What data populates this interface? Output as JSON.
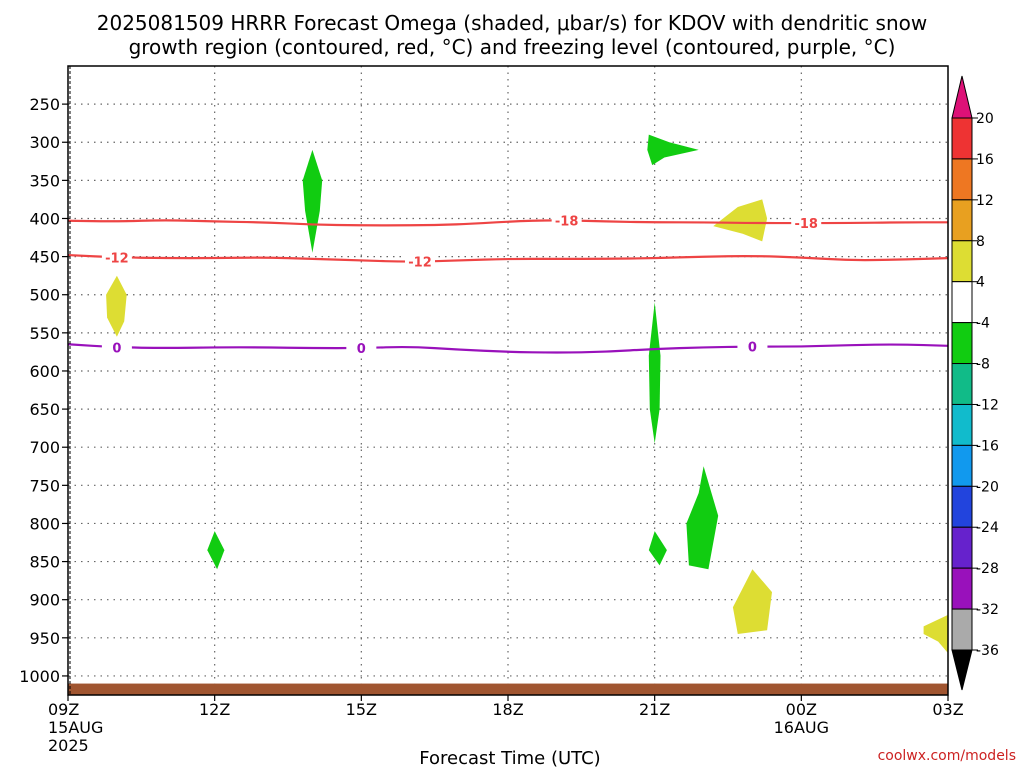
{
  "chart_data": {
    "type": "heatmap",
    "title_line1": "2025081509 HRRR Forecast Omega (shaded, μbar/s) for KDOV with dendritic snow",
    "title_line2": "growth region (contoured, red, °C) and freezing level (contoured, purple, °C)",
    "xlabel": "Forecast Time (UTC)",
    "credit": "coolwx.com/models",
    "x_hours_range": [
      0,
      18
    ],
    "y_range_hpa": [
      200,
      1025
    ],
    "y_ticks": [
      250,
      300,
      350,
      400,
      450,
      500,
      550,
      600,
      650,
      700,
      750,
      800,
      850,
      900,
      950,
      1000
    ],
    "x_ticks": [
      {
        "h": 0,
        "lines": [
          "09Z",
          "15AUG",
          "2025"
        ]
      },
      {
        "h": 3,
        "lines": [
          "12Z"
        ]
      },
      {
        "h": 6,
        "lines": [
          "15Z"
        ]
      },
      {
        "h": 9,
        "lines": [
          "18Z"
        ]
      },
      {
        "h": 12,
        "lines": [
          "21Z"
        ]
      },
      {
        "h": 15,
        "lines": [
          "00Z",
          "16AUG"
        ]
      },
      {
        "h": 18,
        "lines": [
          "03Z"
        ]
      }
    ],
    "colorbar": {
      "labels": [
        "20",
        "16",
        "12",
        "8",
        "4",
        "-4",
        "-8",
        "-12",
        "-16",
        "-20",
        "-24",
        "-28",
        "-32",
        "-36"
      ],
      "bins": [
        {
          "range": [
            16,
            20
          ],
          "color": "#ee3333"
        },
        {
          "range": [
            12,
            16
          ],
          "color": "#ee7722"
        },
        {
          "range": [
            8,
            12
          ],
          "color": "#e8a020"
        },
        {
          "range": [
            4,
            8
          ],
          "color": "#dddd33"
        },
        {
          "range": [
            -4,
            4
          ],
          "color": "#ffffff"
        },
        {
          "range": [
            -8,
            -4
          ],
          "color": "#11cc11"
        },
        {
          "range": [
            -12,
            -8
          ],
          "color": "#11bb88"
        },
        {
          "range": [
            -16,
            -12
          ],
          "color": "#11bbcc"
        },
        {
          "range": [
            -20,
            -16
          ],
          "color": "#1199ee"
        },
        {
          "range": [
            -24,
            -20
          ],
          "color": "#2244dd"
        },
        {
          "range": [
            -28,
            -24
          ],
          "color": "#6622cc"
        },
        {
          "range": [
            -32,
            -28
          ],
          "color": "#9911bb"
        },
        {
          "range": [
            -36,
            -32
          ],
          "color": "#aaaaaa"
        }
      ],
      "top_color": "#dd1177",
      "bottom_color": "#000000"
    },
    "contours": [
      {
        "name": "-18",
        "color": "#ee4444",
        "label": "-18",
        "points": [
          [
            0,
            403
          ],
          [
            1,
            404
          ],
          [
            2,
            402
          ],
          [
            3,
            404
          ],
          [
            4,
            405
          ],
          [
            5,
            408
          ],
          [
            6,
            409
          ],
          [
            7,
            409
          ],
          [
            8,
            408
          ],
          [
            9,
            404
          ],
          [
            10,
            402
          ],
          [
            11,
            404
          ],
          [
            12,
            405
          ],
          [
            13,
            405
          ],
          [
            14,
            406
          ],
          [
            15,
            406
          ],
          [
            16,
            406
          ],
          [
            17,
            405
          ],
          [
            18,
            405
          ]
        ],
        "label_hours": [
          10.2,
          15.1
        ]
      },
      {
        "name": "-12",
        "color": "#ee4444",
        "label": "-12",
        "points": [
          [
            0,
            448
          ],
          [
            1,
            451
          ],
          [
            2,
            452
          ],
          [
            3,
            452
          ],
          [
            4,
            451
          ],
          [
            5,
            453
          ],
          [
            6,
            455
          ],
          [
            7,
            457
          ],
          [
            8,
            455
          ],
          [
            9,
            453
          ],
          [
            10,
            453
          ],
          [
            11,
            453
          ],
          [
            12,
            452
          ],
          [
            13,
            450
          ],
          [
            14,
            449
          ],
          [
            15,
            451
          ],
          [
            16,
            455
          ],
          [
            17,
            454
          ],
          [
            18,
            452
          ]
        ],
        "label_hours": [
          1.0,
          7.2
        ]
      },
      {
        "name": "0",
        "color": "#9911bb",
        "label": "0",
        "points": [
          [
            0,
            565
          ],
          [
            1,
            569
          ],
          [
            2,
            570
          ],
          [
            3,
            569
          ],
          [
            4,
            569
          ],
          [
            5,
            570
          ],
          [
            6,
            570
          ],
          [
            7,
            568
          ],
          [
            8,
            572
          ],
          [
            9,
            575
          ],
          [
            10,
            576
          ],
          [
            11,
            575
          ],
          [
            12,
            571
          ],
          [
            13,
            569
          ],
          [
            14,
            568
          ],
          [
            15,
            568
          ],
          [
            16,
            566
          ],
          [
            17,
            565
          ],
          [
            18,
            567
          ]
        ],
        "label_hours": [
          1.0,
          6.0,
          14.0
        ]
      }
    ],
    "features": [
      {
        "name": "sinking-300",
        "color": "#11cc11",
        "points": [
          [
            11.88,
            290
          ],
          [
            12.3,
            300
          ],
          [
            12.9,
            310
          ],
          [
            12.2,
            320
          ],
          [
            11.95,
            330
          ],
          [
            11.85,
            310
          ]
        ]
      },
      {
        "name": "sinking-380",
        "color": "#11cc11",
        "points": [
          [
            5.0,
            310
          ],
          [
            5.2,
            350
          ],
          [
            5.15,
            390
          ],
          [
            5.0,
            445
          ],
          [
            4.85,
            390
          ],
          [
            4.8,
            350
          ]
        ]
      },
      {
        "name": "rising-400",
        "color": "#dddd33",
        "points": [
          [
            13.2,
            410
          ],
          [
            13.7,
            385
          ],
          [
            14.2,
            375
          ],
          [
            14.3,
            400
          ],
          [
            14.2,
            430
          ],
          [
            13.8,
            420
          ]
        ]
      },
      {
        "name": "rising-500",
        "color": "#dddd33",
        "points": [
          [
            1.0,
            475
          ],
          [
            1.2,
            500
          ],
          [
            1.15,
            535
          ],
          [
            1.0,
            555
          ],
          [
            0.8,
            530
          ],
          [
            0.78,
            500
          ]
        ]
      },
      {
        "name": "sinking-600",
        "color": "#11cc11",
        "points": [
          [
            12.0,
            510
          ],
          [
            12.12,
            580
          ],
          [
            12.1,
            650
          ],
          [
            12.0,
            695
          ],
          [
            11.9,
            650
          ],
          [
            11.88,
            580
          ]
        ]
      },
      {
        "name": "sinking-830-a",
        "color": "#11cc11",
        "points": [
          [
            3.0,
            810
          ],
          [
            3.2,
            835
          ],
          [
            3.05,
            860
          ],
          [
            2.85,
            835
          ]
        ]
      },
      {
        "name": "sinking-830-b",
        "color": "#11cc11",
        "points": [
          [
            12.0,
            810
          ],
          [
            12.25,
            835
          ],
          [
            12.1,
            855
          ],
          [
            11.88,
            835
          ]
        ]
      },
      {
        "name": "sinking-780",
        "color": "#11cc11",
        "points": [
          [
            13.0,
            725
          ],
          [
            13.3,
            790
          ],
          [
            13.1,
            860
          ],
          [
            12.7,
            855
          ],
          [
            12.65,
            800
          ],
          [
            12.9,
            760
          ]
        ]
      },
      {
        "name": "rising-900",
        "color": "#dddd33",
        "points": [
          [
            14.0,
            860
          ],
          [
            14.4,
            890
          ],
          [
            14.3,
            940
          ],
          [
            13.7,
            945
          ],
          [
            13.6,
            910
          ],
          [
            13.8,
            885
          ]
        ]
      },
      {
        "name": "rising-950",
        "color": "#dddd33",
        "points": [
          [
            17.5,
            935
          ],
          [
            18.0,
            920
          ],
          [
            18.0,
            970
          ],
          [
            17.8,
            955
          ],
          [
            17.5,
            945
          ]
        ]
      }
    ],
    "ground": {
      "top_hpa": 1010,
      "color": "#a05530"
    }
  }
}
